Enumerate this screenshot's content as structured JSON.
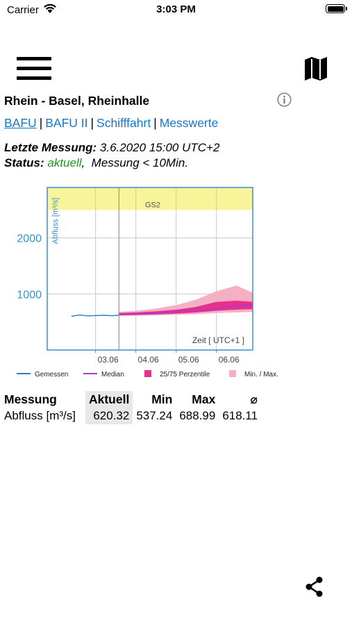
{
  "status_bar": {
    "carrier": "Carrier",
    "time": "3:03 PM"
  },
  "toolbar": {
    "menu_icon": "hamburger-icon",
    "map_icon": "map-icon"
  },
  "station": {
    "title": "Rhein - Basel, Rheinhalle",
    "info_icon": "info-icon"
  },
  "links": [
    {
      "label": "BAFU",
      "active": true
    },
    {
      "label": "BAFU II",
      "active": false
    },
    {
      "label": "Schifffahrt",
      "active": false
    },
    {
      "label": "Messwerte",
      "active": false
    }
  ],
  "measurement": {
    "last_label": "Letzte Messung:",
    "last_value": "3.6.2020 15:00 UTC+2",
    "status_label": "Status:",
    "status_value": "aktuell",
    "status_rest": ",  Messung < 10Min."
  },
  "chart_data": {
    "type": "area",
    "ylabel": "Abfluss  [m³/s]",
    "xlabel": "Zeit  [ UTC+1 ]",
    "ylim": [
      0,
      2900
    ],
    "yticks": [
      "1000",
      "2000"
    ],
    "xticks": [
      "03.06",
      "04.06",
      "05.06",
      "06.06"
    ],
    "threshold_band": {
      "label": "GS2",
      "from": 2500,
      "to": 2900,
      "color": "#f8f49a"
    },
    "now_marker_x": 2.58,
    "grid": true,
    "legend": [
      {
        "name": "Gemessen",
        "color": "#2a7fc0"
      },
      {
        "name": "Median",
        "color": "#a040d0"
      },
      {
        "name": "25/75 Perzentile",
        "color": "#e8308a"
      },
      {
        "name": "Min. / Max.",
        "color": "#f6b0c4"
      }
    ],
    "series": [
      {
        "name": "Gemessen",
        "x": [
          1.4,
          1.6,
          1.8,
          2.0,
          2.2,
          2.4,
          2.58
        ],
        "values": [
          600,
          625,
          610,
          615,
          620,
          612,
          620
        ]
      },
      {
        "name": "Median",
        "x": [
          2.58,
          3.0,
          3.5,
          4.0,
          4.5,
          5.0,
          5.5,
          5.9
        ],
        "values": [
          640,
          645,
          660,
          680,
          710,
          740,
          790,
          810
        ]
      },
      {
        "name": "25/75 Perzentile",
        "x": [
          2.58,
          3.0,
          3.5,
          4.0,
          4.5,
          5.0,
          5.5,
          5.9
        ],
        "lower": [
          620,
          625,
          635,
          650,
          670,
          700,
          720,
          730
        ],
        "upper": [
          660,
          670,
          690,
          720,
          770,
          860,
          880,
          860
        ]
      },
      {
        "name": "Min. / Max.",
        "x": [
          2.58,
          3.0,
          3.5,
          4.0,
          4.5,
          5.0,
          5.5,
          5.9
        ],
        "lower": [
          610,
          612,
          620,
          630,
          640,
          660,
          670,
          680
        ],
        "upper": [
          680,
          700,
          740,
          800,
          900,
          1050,
          1150,
          1020
        ]
      }
    ]
  },
  "stats": {
    "headers": [
      "Messung",
      "Aktuell",
      "Min",
      "Max",
      "⌀"
    ],
    "rows": [
      [
        "Abfluss  [m³/s]",
        "620.32",
        "537.24",
        "688.99",
        "618.11"
      ]
    ]
  },
  "footer": {
    "share_icon": "share-icon"
  },
  "colors": {
    "link": "#1478c8",
    "status_ok": "#1a9a1a",
    "axis": "#3a8fd0"
  }
}
